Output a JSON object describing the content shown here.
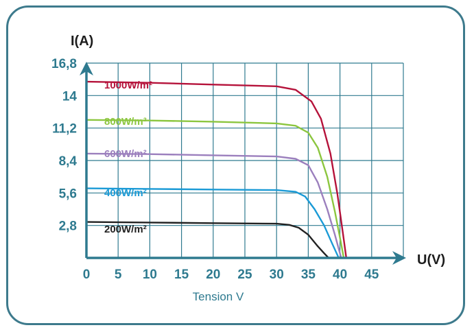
{
  "chart_data": {
    "type": "line",
    "ylabel": "I(A)",
    "xlabel_axis": "U(V)",
    "xlabel": "Tension V",
    "xlim": [
      0,
      50
    ],
    "ylim": [
      0,
      16.8
    ],
    "x_ticks": [
      0,
      5,
      10,
      15,
      20,
      25,
      30,
      35,
      40,
      45
    ],
    "x_tick_labels": [
      "0",
      "5",
      "10",
      "15",
      "20",
      "25",
      "30",
      "35",
      "40",
      "45"
    ],
    "y_ticks": [
      2.8,
      5.6,
      8.4,
      11.2,
      14,
      16.8
    ],
    "y_tick_labels": [
      "2,8",
      "5,6",
      "8,4",
      "11,2",
      "14",
      "16,8"
    ],
    "grid": true,
    "series": [
      {
        "name": "1000W/m²",
        "color": "#b5123a",
        "label_color": "#b5123a",
        "points": [
          [
            0,
            15.2
          ],
          [
            10,
            15.1
          ],
          [
            20,
            14.95
          ],
          [
            30,
            14.8
          ],
          [
            33,
            14.5
          ],
          [
            35.5,
            13.5
          ],
          [
            37,
            12.0
          ],
          [
            38.5,
            9.0
          ],
          [
            39.6,
            5.5
          ],
          [
            40.5,
            2.0
          ],
          [
            41,
            0
          ]
        ]
      },
      {
        "name": "800W/m²",
        "color": "#8cc63f",
        "label_color": "#8cc63f",
        "points": [
          [
            0,
            11.9
          ],
          [
            10,
            11.85
          ],
          [
            20,
            11.75
          ],
          [
            30,
            11.6
          ],
          [
            33,
            11.4
          ],
          [
            35,
            10.8
          ],
          [
            36.5,
            9.5
          ],
          [
            38,
            7.0
          ],
          [
            39.2,
            4.0
          ],
          [
            40.2,
            1.2
          ],
          [
            40.6,
            0
          ]
        ]
      },
      {
        "name": "600W/m²",
        "color": "#9b7fbd",
        "label_color": "#9b7fbd",
        "points": [
          [
            0,
            9.0
          ],
          [
            10,
            8.95
          ],
          [
            20,
            8.85
          ],
          [
            30,
            8.75
          ],
          [
            33,
            8.55
          ],
          [
            35,
            8.0
          ],
          [
            36.5,
            6.5
          ],
          [
            38,
            4.2
          ],
          [
            39.2,
            2.0
          ],
          [
            40.2,
            0
          ]
        ]
      },
      {
        "name": "400W/m²",
        "color": "#1a9ad6",
        "label_color": "#1a9ad6",
        "points": [
          [
            0,
            6.0
          ],
          [
            10,
            5.95
          ],
          [
            20,
            5.9
          ],
          [
            30,
            5.85
          ],
          [
            33,
            5.7
          ],
          [
            34.5,
            5.3
          ],
          [
            36,
            4.2
          ],
          [
            37.5,
            2.8
          ],
          [
            38.8,
            1.2
          ],
          [
            39.8,
            0
          ]
        ]
      },
      {
        "name": "200W/m²",
        "color": "#222222",
        "label_color": "#222222",
        "points": [
          [
            0,
            3.1
          ],
          [
            10,
            3.05
          ],
          [
            20,
            3.0
          ],
          [
            30,
            2.95
          ],
          [
            32,
            2.85
          ],
          [
            33.5,
            2.6
          ],
          [
            35,
            2.0
          ],
          [
            36.5,
            1.0
          ],
          [
            37.5,
            0.4
          ],
          [
            38.2,
            0
          ]
        ]
      }
    ],
    "colors": {
      "axis": "#2e7a8f",
      "grid": "#2e7a8f",
      "frame": "#3d7a8c"
    }
  }
}
